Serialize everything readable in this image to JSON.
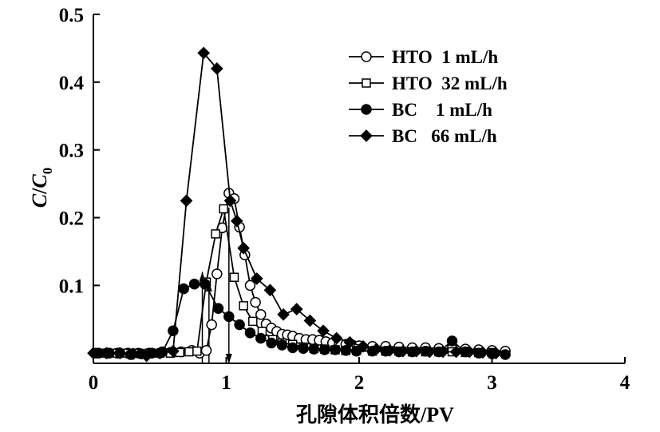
{
  "chart_data": {
    "type": "line",
    "xlabel": "孔隙体积倍数/PV",
    "ylabel_parts": {
      "c": "C",
      "slash": "/",
      "c0": "C",
      "sub": "0"
    },
    "xlim": [
      0,
      4
    ],
    "ylim": [
      -0.015,
      0.5
    ],
    "xticks": [
      0,
      1,
      2,
      3,
      4
    ],
    "xtick_labels": [
      "0",
      "1",
      "2",
      "3",
      "4"
    ],
    "yticks": [
      0.1,
      0.2,
      0.3,
      0.4,
      0.5
    ],
    "ytick_labels": [
      "0.1",
      "0.2",
      "0.3",
      "0.4",
      "0.5"
    ],
    "grid": false,
    "legend_position": "top-right",
    "series": [
      {
        "name": "HTO  1 mL/h",
        "marker": "circle-open",
        "x": [
          0.02,
          0.1,
          0.18,
          0.26,
          0.34,
          0.42,
          0.5,
          0.58,
          0.66,
          0.74,
          0.8,
          0.85,
          0.89,
          0.93,
          0.97,
          1.02,
          1.06,
          1.1,
          1.14,
          1.18,
          1.22,
          1.26,
          1.3,
          1.34,
          1.38,
          1.42,
          1.46,
          1.5,
          1.55,
          1.6,
          1.65,
          1.7,
          1.75,
          1.8,
          1.85,
          1.9,
          1.95,
          2.0,
          2.1,
          2.2,
          2.3,
          2.4,
          2.5,
          2.6,
          2.7,
          2.8,
          2.9,
          3.0,
          3.1
        ],
        "y": [
          0.0,
          0.0,
          0.0,
          0.0,
          0.0,
          0.0,
          0.0,
          0.001,
          0.002,
          0.004,
          0.0,
          0.004,
          0.042,
          0.117,
          0.185,
          0.236,
          0.228,
          0.186,
          0.145,
          0.1,
          0.075,
          0.057,
          0.043,
          0.037,
          0.032,
          0.028,
          0.027,
          0.025,
          0.022,
          0.02,
          0.02,
          0.019,
          0.017,
          0.015,
          0.014,
          0.013,
          0.012,
          0.011,
          0.01,
          0.01,
          0.009,
          0.008,
          0.008,
          0.007,
          0.007,
          0.006,
          0.005,
          0.004,
          0.003
        ]
      },
      {
        "name": "HTO  32 mL/h",
        "marker": "square-open",
        "x": [
          0.1,
          0.18,
          0.26,
          0.34,
          0.42,
          0.5,
          0.58,
          0.65,
          0.72,
          0.78,
          0.85,
          0.92,
          0.98,
          1.06,
          1.13,
          1.2,
          1.27,
          1.35,
          1.42,
          1.5,
          1.58,
          1.66,
          1.74,
          1.82,
          1.9,
          1.98,
          2.1,
          2.2,
          2.3,
          2.4,
          2.5,
          2.6,
          2.7,
          2.8,
          2.9,
          3.0
        ],
        "y": [
          0.0,
          0.0,
          0.0,
          0.0,
          0.0,
          0.0,
          0.0,
          0.001,
          0.002,
          0.003,
          0.105,
          0.176,
          0.213,
          0.112,
          0.07,
          0.047,
          0.032,
          0.02,
          0.015,
          0.013,
          0.009,
          0.007,
          0.006,
          0.005,
          0.004,
          0.004,
          0.003,
          0.003,
          0.003,
          0.002,
          0.002,
          0.002,
          0.002,
          0.001,
          0.001,
          0.001
        ]
      },
      {
        "name": "BC    1 mL/h",
        "marker": "circle-filled",
        "x": [
          0.04,
          0.12,
          0.2,
          0.28,
          0.36,
          0.44,
          0.52,
          0.6,
          0.68,
          0.76,
          0.84,
          0.94,
          1.02,
          1.1,
          1.18,
          1.26,
          1.34,
          1.42,
          1.5,
          1.58,
          1.66,
          1.74,
          1.82,
          1.9,
          1.98,
          2.1,
          2.2,
          2.3,
          2.4,
          2.5,
          2.6,
          2.7,
          2.8,
          2.9,
          3.0,
          3.1
        ],
        "y": [
          0.0,
          0.0,
          0.0,
          -0.002,
          -0.001,
          0.0,
          0.002,
          0.033,
          0.095,
          0.102,
          0.102,
          0.066,
          0.054,
          0.042,
          0.03,
          0.022,
          0.015,
          0.012,
          0.008,
          0.007,
          0.006,
          0.005,
          0.005,
          0.004,
          0.003,
          0.003,
          0.003,
          0.002,
          0.002,
          0.003,
          0.002,
          0.018,
          0.002,
          0.0,
          -0.001,
          -0.002
        ]
      },
      {
        "name": "BC   66 mL/h",
        "marker": "diamond-filled",
        "x": [
          0.0,
          0.1,
          0.2,
          0.3,
          0.4,
          0.5,
          0.6,
          0.7,
          0.83,
          0.93,
          1.03,
          1.08,
          1.13,
          1.23,
          1.33,
          1.43,
          1.53,
          1.63,
          1.73,
          1.83,
          1.93,
          2.03,
          2.13,
          2.23,
          2.33,
          2.43,
          2.53,
          2.63,
          2.73,
          2.83,
          2.93,
          3.03
        ],
        "y": [
          0.0,
          0.0,
          0.0,
          -0.001,
          -0.004,
          0.0,
          0.003,
          0.225,
          0.443,
          0.42,
          0.225,
          0.195,
          0.155,
          0.11,
          0.093,
          0.057,
          0.065,
          0.048,
          0.033,
          0.022,
          0.016,
          0.01,
          0.006,
          0.004,
          0.003,
          0.003,
          0.002,
          0.002,
          0.002,
          0.002,
          0.001,
          0.0
        ]
      }
    ],
    "annotations": [
      {
        "kind": "arrow-up",
        "x": 0.82,
        "y_from": -0.015,
        "y_to": 0.12
      },
      {
        "kind": "arrow-up",
        "x": 0.87,
        "y_from": -0.015,
        "y_to": 0.105
      },
      {
        "kind": "arrow-down",
        "x": 1.02,
        "y_from": 0.215,
        "y_to": -0.015
      }
    ]
  }
}
